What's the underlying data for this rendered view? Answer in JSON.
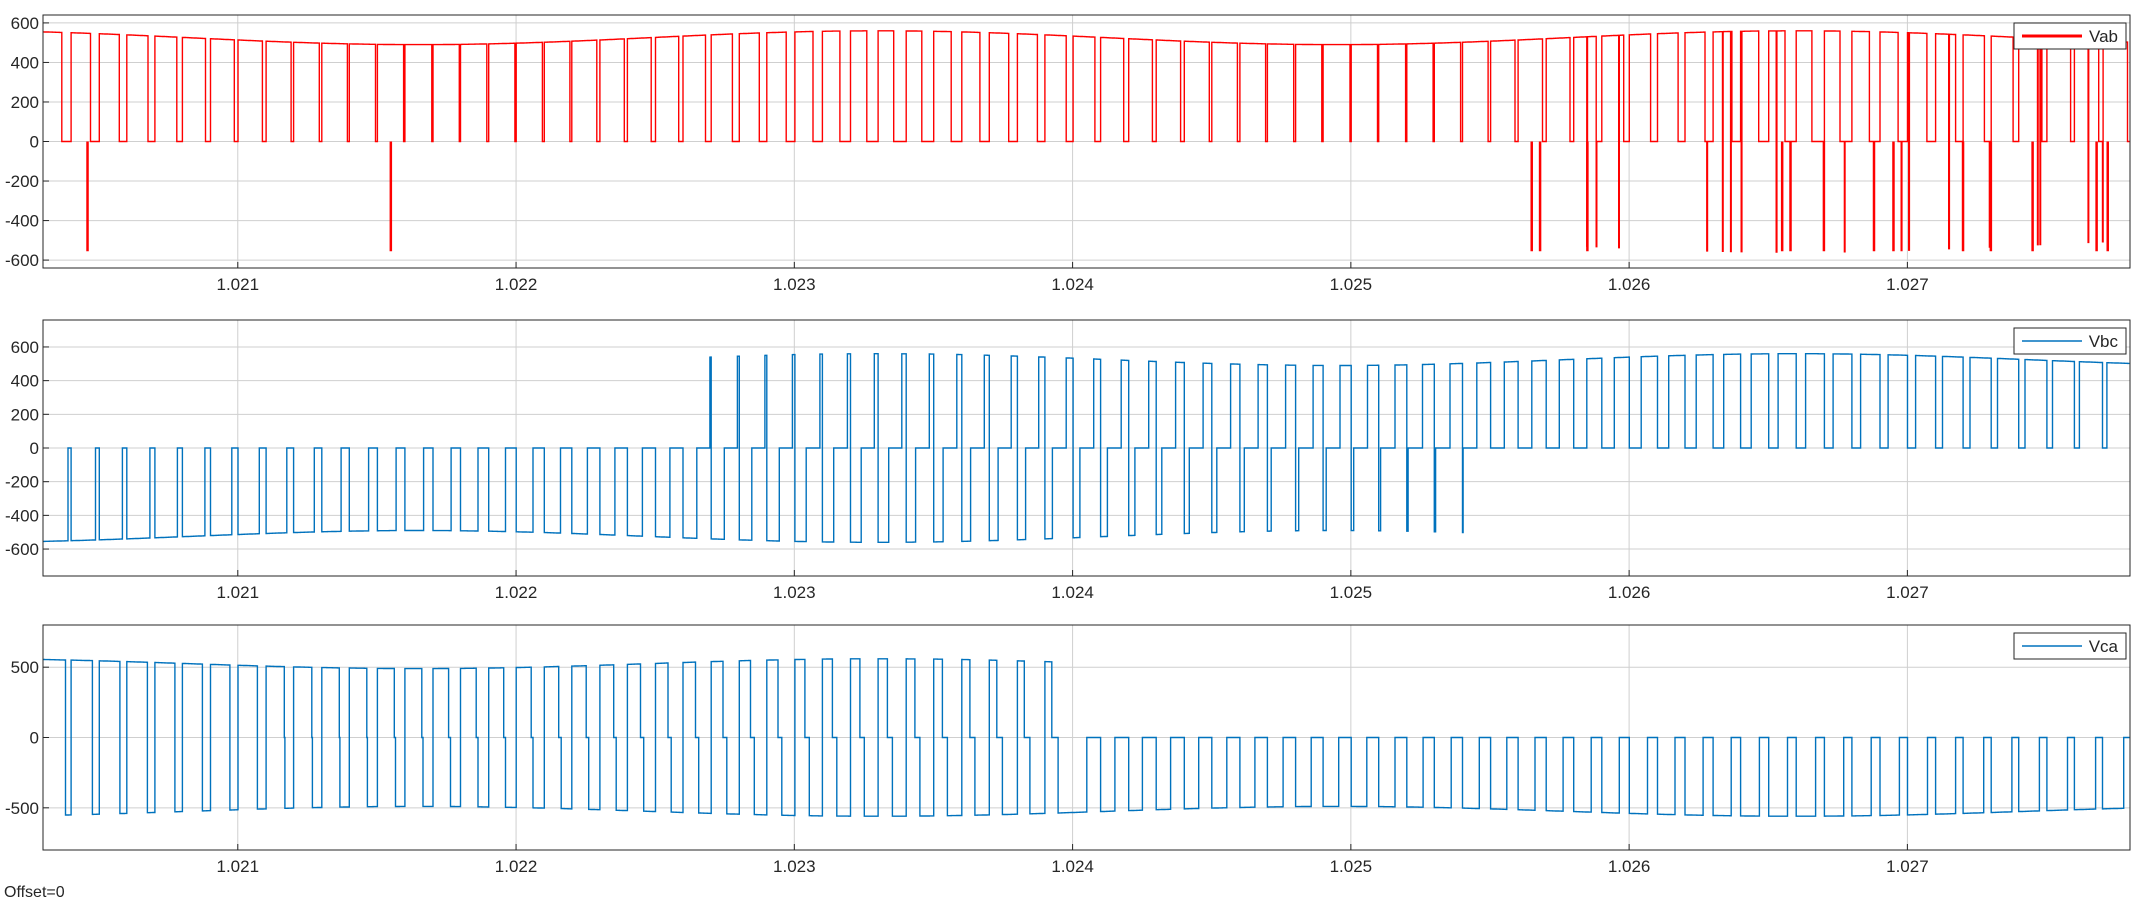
{
  "footer": {
    "offset_text": "Offset=0"
  },
  "colors": {
    "vab": "#ff0000",
    "vbc": "#0072bd",
    "vca": "#0072bd",
    "grid": "#cfcfcf",
    "axis": "#262626"
  },
  "chart_data": [
    {
      "type": "line",
      "series": [
        {
          "name": "Vab",
          "color": "#ff0000"
        }
      ],
      "x": {
        "lim": [
          1.0203,
          1.0278
        ],
        "ticks": [
          1.021,
          1.022,
          1.023,
          1.024,
          1.025,
          1.026,
          1.027
        ],
        "tick_labels": [
          "1.021",
          "1.022",
          "1.023",
          "1.024",
          "1.025",
          "1.026",
          "1.027"
        ]
      },
      "y": {
        "lim": [
          -640,
          640
        ],
        "ticks": [
          -600,
          -400,
          -200,
          0,
          200,
          400,
          600
        ],
        "tick_labels": [
          "-600",
          "-400",
          "-200",
          "0",
          "200",
          "400",
          "600"
        ]
      },
      "grid": true,
      "legend": "top-right",
      "signal": {
        "form": "PWM line voltage",
        "levels": "0 / +envelope",
        "envelope_peak": 560,
        "envelope_min": 490,
        "envelope_min_at": [
          1.0217,
          1.0251
        ],
        "envelope_peak_at": [
          1.0203,
          1.0233,
          1.0266
        ],
        "negative_spikes_at": [
          1.02046,
          1.02155,
          1.02565,
          1.02568,
          1.02585,
          1.02655,
          1.02658,
          1.0267,
          1.02688,
          1.02695,
          1.0272,
          1.0273,
          1.02745,
          1.02768,
          1.02772
        ],
        "negative_spike_value": -555
      }
    },
    {
      "type": "line",
      "series": [
        {
          "name": "Vbc",
          "color": "#0072bd"
        }
      ],
      "x": {
        "lim": [
          1.0203,
          1.0278
        ],
        "ticks": [
          1.021,
          1.022,
          1.023,
          1.024,
          1.025,
          1.026,
          1.027
        ],
        "tick_labels": [
          "1.021",
          "1.022",
          "1.023",
          "1.024",
          "1.025",
          "1.026",
          "1.027"
        ]
      },
      "y": {
        "lim": [
          -760,
          760
        ],
        "ticks": [
          -600,
          -400,
          -200,
          0,
          200,
          400,
          600
        ],
        "tick_labels": [
          "-600",
          "-400",
          "-200",
          "0",
          "200",
          "400",
          "600"
        ]
      },
      "grid": true,
      "legend": "top-right",
      "signal": {
        "form": "PWM line voltage",
        "negative_phase_until": 1.0257,
        "positive_phase_from": 1.0226,
        "negative_peak": -550,
        "positive_peak": 560,
        "envelope_min_magnitude": 490
      }
    },
    {
      "type": "line",
      "series": [
        {
          "name": "Vca",
          "color": "#0072bd"
        }
      ],
      "x": {
        "lim": [
          1.0203,
          1.0278
        ],
        "ticks": [
          1.021,
          1.022,
          1.023,
          1.024,
          1.025,
          1.026,
          1.027
        ],
        "tick_labels": [
          "1.021",
          "1.022",
          "1.023",
          "1.024",
          "1.025",
          "1.026",
          "1.027"
        ]
      },
      "y": {
        "lim": [
          -800,
          800
        ],
        "ticks": [
          -500,
          0,
          500
        ],
        "tick_labels": [
          "-500",
          "0",
          "500"
        ]
      },
      "grid": true,
      "legend": "top-right",
      "signal": {
        "form": "PWM line voltage",
        "positive_phase_until": 1.024,
        "negative_phase_from": 1.0203,
        "positive_peak": 555,
        "negative_peak": -555,
        "envelope_min_magnitude": 490
      }
    }
  ]
}
